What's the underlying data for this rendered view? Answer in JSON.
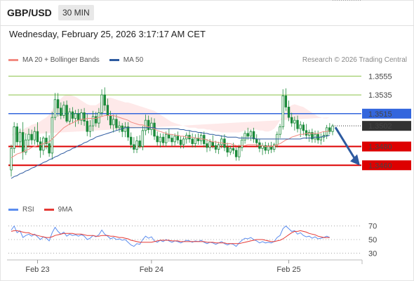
{
  "header": {
    "pair": "GBP/USD",
    "timeframe": "30 MIN"
  },
  "datetime": "Wednesday, February 25, 2026 3:17:17 AM CET",
  "legend": {
    "ma20": "MA 20 + Bollinger Bands",
    "ma50": "MA 50",
    "rsi": "RSI",
    "ma9": "9MA",
    "colors": {
      "ma20": "#f28b82",
      "ma50": "#2d5aa0",
      "rsi": "#5b8def",
      "ma9": "#e53935"
    }
  },
  "credit": "Research © 2026 Trading Central",
  "chart_data": {
    "type": "candlestick",
    "y_range": [
      1.344,
      1.3565
    ],
    "x_labels": [
      "Feb 23",
      "Feb 24",
      "Feb 25"
    ],
    "levels": [
      {
        "value": 1.3555,
        "label": "1.3555",
        "style": "thin",
        "color": "#8bc34a",
        "text_color": "#6a9e2a"
      },
      {
        "value": 1.3535,
        "label": "1.3535",
        "style": "thin",
        "color": "#8bc34a",
        "text_color": "#6a9e2a"
      },
      {
        "value": 1.3515,
        "label": "1.3515",
        "style": "pivot",
        "color": "#3366dd",
        "text_color": "#ffffff"
      },
      {
        "value": 1.348,
        "label": "1.3480",
        "style": "thick",
        "color": "#dd0000",
        "text_color": "#ffffff"
      },
      {
        "value": 1.346,
        "label": "1.3460",
        "style": "thick",
        "color": "#dd0000",
        "text_color": "#ffffff"
      }
    ],
    "last_price": {
      "value": 1.3502,
      "label": "1.3502"
    },
    "forecast_target": 1.3462,
    "candles": [
      [
        1.3455,
        1.3482,
        1.3448,
        1.3478
      ],
      [
        1.3478,
        1.3506,
        1.3473,
        1.3501
      ],
      [
        1.3501,
        1.3505,
        1.3481,
        1.3485
      ],
      [
        1.3485,
        1.3499,
        1.3479,
        1.3495
      ],
      [
        1.3495,
        1.3506,
        1.3466,
        1.3474
      ],
      [
        1.3474,
        1.3494,
        1.3471,
        1.3487
      ],
      [
        1.3487,
        1.3499,
        1.3479,
        1.3493
      ],
      [
        1.3493,
        1.3498,
        1.3482,
        1.3487
      ],
      [
        1.3487,
        1.3501,
        1.3482,
        1.3496
      ],
      [
        1.3496,
        1.3506,
        1.3481,
        1.3485
      ],
      [
        1.3485,
        1.349,
        1.3468,
        1.3476
      ],
      [
        1.3476,
        1.3491,
        1.3471,
        1.3489
      ],
      [
        1.3489,
        1.3496,
        1.3477,
        1.3483
      ],
      [
        1.3483,
        1.3492,
        1.3469,
        1.3473
      ],
      [
        1.3473,
        1.3517,
        1.3466,
        1.3511
      ],
      [
        1.3511,
        1.3537,
        1.3508,
        1.353
      ],
      [
        1.353,
        1.3537,
        1.3512,
        1.3521
      ],
      [
        1.3521,
        1.3527,
        1.3509,
        1.3513
      ],
      [
        1.3513,
        1.3528,
        1.351,
        1.3524
      ],
      [
        1.3524,
        1.3529,
        1.3505,
        1.3507
      ],
      [
        1.3507,
        1.3521,
        1.3503,
        1.3517
      ],
      [
        1.3517,
        1.3522,
        1.3505,
        1.351
      ],
      [
        1.351,
        1.3519,
        1.3501,
        1.3515
      ],
      [
        1.3515,
        1.352,
        1.3504,
        1.3508
      ],
      [
        1.3508,
        1.352,
        1.3503,
        1.3516
      ],
      [
        1.3516,
        1.3521,
        1.3502,
        1.3507
      ],
      [
        1.3507,
        1.3515,
        1.3491,
        1.3496
      ],
      [
        1.3496,
        1.3508,
        1.349,
        1.3502
      ],
      [
        1.3502,
        1.3518,
        1.3496,
        1.3512
      ],
      [
        1.3512,
        1.3517,
        1.3501,
        1.3505
      ],
      [
        1.3505,
        1.3521,
        1.35,
        1.3516
      ],
      [
        1.3516,
        1.3541,
        1.3512,
        1.3535
      ],
      [
        1.3535,
        1.3543,
        1.3518,
        1.3524
      ],
      [
        1.3524,
        1.3531,
        1.3508,
        1.3513
      ],
      [
        1.3513,
        1.3518,
        1.3499,
        1.3503
      ],
      [
        1.3503,
        1.3514,
        1.3495,
        1.3509
      ],
      [
        1.3509,
        1.3514,
        1.3497,
        1.35
      ],
      [
        1.35,
        1.3507,
        1.3495,
        1.3502
      ],
      [
        1.3502,
        1.3505,
        1.349,
        1.3496
      ],
      [
        1.3496,
        1.3506,
        1.349,
        1.3501
      ],
      [
        1.3501,
        1.3506,
        1.3486,
        1.349
      ],
      [
        1.349,
        1.3495,
        1.3478,
        1.3482
      ],
      [
        1.3482,
        1.349,
        1.3473,
        1.3477
      ],
      [
        1.3477,
        1.3491,
        1.3473,
        1.3486
      ],
      [
        1.3486,
        1.3492,
        1.3478,
        1.348
      ],
      [
        1.348,
        1.3502,
        1.3476,
        1.3497
      ],
      [
        1.3497,
        1.3514,
        1.3492,
        1.3508
      ],
      [
        1.3508,
        1.3513,
        1.3494,
        1.3498
      ],
      [
        1.3498,
        1.3511,
        1.3492,
        1.3505
      ],
      [
        1.3505,
        1.351,
        1.3487,
        1.3491
      ],
      [
        1.3491,
        1.3496,
        1.3481,
        1.3485
      ],
      [
        1.3485,
        1.3494,
        1.3479,
        1.349
      ],
      [
        1.349,
        1.3494,
        1.3481,
        1.3484
      ],
      [
        1.3484,
        1.3496,
        1.348,
        1.3493
      ],
      [
        1.3493,
        1.3499,
        1.3485,
        1.3489
      ],
      [
        1.3489,
        1.3493,
        1.348,
        1.3485
      ],
      [
        1.3485,
        1.3494,
        1.3481,
        1.3491
      ],
      [
        1.3491,
        1.3496,
        1.3483,
        1.3487
      ],
      [
        1.3487,
        1.3491,
        1.3478,
        1.3482
      ],
      [
        1.3482,
        1.3491,
        1.3478,
        1.3488
      ],
      [
        1.3488,
        1.3495,
        1.3483,
        1.3492
      ],
      [
        1.3492,
        1.3497,
        1.3484,
        1.3488
      ],
      [
        1.3488,
        1.3494,
        1.3479,
        1.3483
      ],
      [
        1.3483,
        1.3493,
        1.3479,
        1.3489
      ],
      [
        1.3489,
        1.3494,
        1.3482,
        1.3486
      ],
      [
        1.3486,
        1.3495,
        1.3482,
        1.3492
      ],
      [
        1.3492,
        1.3496,
        1.3479,
        1.3483
      ],
      [
        1.3483,
        1.3488,
        1.3474,
        1.3479
      ],
      [
        1.3479,
        1.3488,
        1.3475,
        1.3485
      ],
      [
        1.3485,
        1.3492,
        1.3478,
        1.3481
      ],
      [
        1.3481,
        1.3486,
        1.3473,
        1.3477
      ],
      [
        1.3477,
        1.3485,
        1.3472,
        1.3482
      ],
      [
        1.3482,
        1.3492,
        1.3478,
        1.3488
      ],
      [
        1.3488,
        1.3493,
        1.3475,
        1.3479
      ],
      [
        1.3479,
        1.3484,
        1.3469,
        1.3474
      ],
      [
        1.3474,
        1.3481,
        1.3471,
        1.3478
      ],
      [
        1.3478,
        1.3484,
        1.3472,
        1.3476
      ],
      [
        1.3476,
        1.3479,
        1.3465,
        1.3469
      ],
      [
        1.3469,
        1.3482,
        1.3465,
        1.3479
      ],
      [
        1.3479,
        1.3491,
        1.3475,
        1.3487
      ],
      [
        1.3487,
        1.3497,
        1.3483,
        1.3494
      ],
      [
        1.3494,
        1.35,
        1.3487,
        1.3491
      ],
      [
        1.3491,
        1.3498,
        1.3486,
        1.3496
      ],
      [
        1.3496,
        1.35,
        1.3484,
        1.3488
      ],
      [
        1.3488,
        1.3493,
        1.348,
        1.3484
      ],
      [
        1.3484,
        1.3488,
        1.3474,
        1.3478
      ],
      [
        1.3478,
        1.3484,
        1.3471,
        1.3481
      ],
      [
        1.3481,
        1.3485,
        1.3472,
        1.3476
      ],
      [
        1.3476,
        1.3484,
        1.3472,
        1.348
      ],
      [
        1.348,
        1.3485,
        1.3473,
        1.3477
      ],
      [
        1.3477,
        1.3484,
        1.3474,
        1.3482
      ],
      [
        1.3482,
        1.3496,
        1.3479,
        1.3493
      ],
      [
        1.3493,
        1.3504,
        1.3489,
        1.3501
      ],
      [
        1.3501,
        1.3541,
        1.3498,
        1.3534
      ],
      [
        1.3534,
        1.3542,
        1.3518,
        1.3522
      ],
      [
        1.3522,
        1.3529,
        1.3507,
        1.3511
      ],
      [
        1.3511,
        1.3516,
        1.3501,
        1.3505
      ],
      [
        1.3505,
        1.3512,
        1.3497,
        1.3508
      ],
      [
        1.3508,
        1.3513,
        1.3495,
        1.3499
      ],
      [
        1.3499,
        1.3507,
        1.349,
        1.3503
      ],
      [
        1.3503,
        1.3506,
        1.3492,
        1.3497
      ],
      [
        1.3497,
        1.3504,
        1.3488,
        1.3492
      ],
      [
        1.3492,
        1.3498,
        1.3485,
        1.3495
      ],
      [
        1.3495,
        1.3499,
        1.3484,
        1.3488
      ],
      [
        1.3488,
        1.3497,
        1.3484,
        1.3493
      ],
      [
        1.3493,
        1.3497,
        1.3483,
        1.3487
      ],
      [
        1.3487,
        1.3494,
        1.3482,
        1.349
      ],
      [
        1.349,
        1.3496,
        1.3485,
        1.3492
      ],
      [
        1.3492,
        1.3503,
        1.3488,
        1.35
      ],
      [
        1.35,
        1.3505,
        1.3493,
        1.3496
      ],
      [
        1.3496,
        1.3504,
        1.3492,
        1.3502
      ]
    ],
    "ma20": [
      1.3468,
      1.347,
      1.3472,
      1.3473,
      1.3474,
      1.3476,
      1.3477,
      1.3479,
      1.348,
      1.3481,
      1.3482,
      1.3483,
      1.3484,
      1.3485,
      1.3488,
      1.3491,
      1.3494,
      1.3497,
      1.35,
      1.3502,
      1.3504,
      1.3505,
      1.3507,
      1.3508,
      1.3509,
      1.3509,
      1.351,
      1.351,
      1.351,
      1.351,
      1.3511,
      1.3512,
      1.3513,
      1.3513,
      1.3513,
      1.3513,
      1.3512,
      1.3511,
      1.351,
      1.3509,
      1.3508,
      1.3506,
      1.3505,
      1.3504,
      1.3503,
      1.3503,
      1.3502,
      1.3501,
      1.35,
      1.3499,
      1.3497,
      1.3496,
      1.3495,
      1.3494,
      1.3493,
      1.3493,
      1.3492,
      1.3492,
      1.3491,
      1.3491,
      1.349,
      1.349,
      1.349,
      1.3489,
      1.3489,
      1.3488,
      1.3488,
      1.3487,
      1.3486,
      1.3485,
      1.3485,
      1.3484,
      1.3484,
      1.3483,
      1.3483,
      1.3483,
      1.3482,
      1.3481,
      1.3481,
      1.3481,
      1.3481,
      1.3482,
      1.3482,
      1.3482,
      1.3482,
      1.3481,
      1.3481,
      1.348,
      1.348,
      1.348,
      1.3481,
      1.3482,
      1.3483,
      1.3485,
      1.3487,
      1.3488,
      1.349,
      1.3491,
      1.3492,
      1.3493,
      1.3493,
      1.3494,
      1.3494,
      1.3494,
      1.3494,
      1.3494,
      1.3495,
      1.3496,
      1.3496,
      1.3497
    ],
    "bb_upper": [
      1.3492,
      1.3494,
      1.3496,
      1.3497,
      1.3498,
      1.35,
      1.3501,
      1.3503,
      1.3504,
      1.3505,
      1.3507,
      1.3509,
      1.3511,
      1.3514,
      1.3519,
      1.3524,
      1.3528,
      1.3531,
      1.3534,
      1.3535,
      1.3535,
      1.3534,
      1.3533,
      1.3531,
      1.3529,
      1.3527,
      1.3525,
      1.3524,
      1.3524,
      1.3524,
      1.3526,
      1.3529,
      1.3531,
      1.3532,
      1.3532,
      1.3531,
      1.353,
      1.3529,
      1.3528,
      1.3527,
      1.3527,
      1.3526,
      1.3525,
      1.3524,
      1.3523,
      1.3522,
      1.3521,
      1.352,
      1.3519,
      1.3518,
      1.3516,
      1.3514,
      1.3512,
      1.351,
      1.3508,
      1.3506,
      1.3505,
      1.3504,
      1.3503,
      1.3502,
      1.3501,
      1.35,
      1.35,
      1.35,
      1.3499,
      1.3499,
      1.3499,
      1.3498,
      1.3498,
      1.3497,
      1.3496,
      1.3496,
      1.3495,
      1.3495,
      1.3495,
      1.3495,
      1.3495,
      1.3495,
      1.3495,
      1.3496,
      1.3497,
      1.3498,
      1.3498,
      1.3498,
      1.3498,
      1.3497,
      1.3497,
      1.3496,
      1.3496,
      1.3497,
      1.3499,
      1.3503,
      1.3508,
      1.3514,
      1.3519,
      1.3522,
      1.3524,
      1.3525,
      1.3524,
      1.3523,
      1.3522,
      1.352,
      1.3518,
      1.3516,
      1.3514,
      1.3512,
      1.3511,
      1.351,
      1.351,
      1.3511
    ],
    "bb_lower": [
      1.3444,
      1.3446,
      1.3448,
      1.3449,
      1.345,
      1.3452,
      1.3453,
      1.3455,
      1.3456,
      1.3457,
      1.3457,
      1.3457,
      1.3457,
      1.3456,
      1.3457,
      1.3458,
      1.346,
      1.3463,
      1.3466,
      1.3469,
      1.3473,
      1.3476,
      1.3481,
      1.3485,
      1.3489,
      1.3491,
      1.3495,
      1.3496,
      1.3496,
      1.3496,
      1.3496,
      1.3495,
      1.3495,
      1.3494,
      1.3494,
      1.3495,
      1.3494,
      1.3493,
      1.3492,
      1.3491,
      1.3489,
      1.3486,
      1.3485,
      1.3484,
      1.3483,
      1.3484,
      1.3483,
      1.3482,
      1.3481,
      1.348,
      1.3478,
      1.3478,
      1.3478,
      1.3478,
      1.3478,
      1.348,
      1.3479,
      1.348,
      1.3479,
      1.348,
      1.3479,
      1.348,
      1.348,
      1.3478,
      1.3479,
      1.3477,
      1.3477,
      1.3476,
      1.3474,
      1.3473,
      1.3474,
      1.3472,
      1.3473,
      1.3471,
      1.3471,
      1.3471,
      1.3469,
      1.3467,
      1.3467,
      1.3466,
      1.3465,
      1.3466,
      1.3466,
      1.3466,
      1.3466,
      1.3465,
      1.3465,
      1.3464,
      1.3464,
      1.3463,
      1.3463,
      1.3461,
      1.3458,
      1.3456,
      1.3455,
      1.3454,
      1.3456,
      1.3457,
      1.346,
      1.3463,
      1.3464,
      1.3468,
      1.347,
      1.3472,
      1.3474,
      1.3476,
      1.3479,
      1.3482,
      1.3482,
      1.3483
    ],
    "ma50": [
      1.3446,
      1.3448,
      1.3449,
      1.3451,
      1.3452,
      1.3454,
      1.3455,
      1.3457,
      1.3458,
      1.346,
      1.3461,
      1.3463,
      1.3464,
      1.3466,
      1.3467,
      1.3469,
      1.347,
      1.3472,
      1.3473,
      1.3475,
      1.3476,
      1.3478,
      1.3479,
      1.3481,
      1.3482,
      1.3484,
      1.3485,
      1.3487,
      1.3488,
      1.349,
      1.3491,
      1.3492,
      1.3493,
      1.3494,
      1.3495,
      1.3496,
      1.3497,
      1.3498,
      1.3499,
      1.35,
      1.35,
      1.35,
      1.35,
      1.35,
      1.35,
      1.35,
      1.35,
      1.35,
      1.35,
      1.35,
      1.3499,
      1.3499,
      1.3499,
      1.3499,
      1.3499,
      1.3499,
      1.3499,
      1.3499,
      1.3498,
      1.3498,
      1.3497,
      1.3497,
      1.3496,
      1.3496,
      1.3495,
      1.3495,
      1.3494,
      1.3494,
      1.3493,
      1.3493,
      1.3492,
      1.3492,
      1.3491,
      1.3491,
      1.349,
      1.349,
      1.349,
      1.349,
      1.3489,
      1.3489,
      1.3489,
      1.3489,
      1.3489,
      1.3489,
      1.3488,
      1.3488,
      1.3488,
      1.3488,
      1.3488,
      1.3488,
      1.3488,
      1.3488,
      1.3488,
      1.3488,
      1.3488,
      1.3488,
      1.3488,
      1.3488,
      1.3488,
      1.3488,
      1.3489,
      1.3489,
      1.3489,
      1.3489,
      1.349,
      1.349,
      1.349,
      1.3491,
      1.3491,
      1.3492
    ],
    "rsi": {
      "levels": [
        70,
        50,
        30
      ],
      "y_range": [
        20,
        80
      ],
      "rsi": [
        64,
        70,
        60,
        63,
        53,
        56,
        58,
        55,
        58,
        54,
        50,
        54,
        52,
        48,
        60,
        68,
        62,
        58,
        61,
        55,
        58,
        56,
        57,
        55,
        57,
        55,
        50,
        52,
        56,
        54,
        57,
        64,
        58,
        55,
        51,
        53,
        50,
        51,
        49,
        50,
        46,
        42,
        40,
        44,
        43,
        50,
        55,
        52,
        54,
        48,
        46,
        49,
        47,
        50,
        48,
        46,
        48,
        47,
        45,
        47,
        49,
        48,
        46,
        48,
        47,
        49,
        46,
        44,
        46,
        45,
        43,
        45,
        47,
        44,
        42,
        44,
        43,
        40,
        45,
        49,
        52,
        51,
        53,
        50,
        48,
        45,
        47,
        45,
        46,
        45,
        47,
        53,
        56,
        66,
        70,
        66,
        62,
        63,
        58,
        60,
        56,
        54,
        55,
        52,
        54,
        51,
        52,
        53,
        55,
        53
      ],
      "ma9": [
        62,
        63,
        63,
        62,
        61,
        60,
        60,
        58,
        57,
        56,
        55,
        54,
        53,
        53,
        54,
        56,
        57,
        58,
        59,
        59,
        59,
        59,
        58,
        58,
        58,
        57,
        56,
        56,
        56,
        55,
        55,
        56,
        56,
        56,
        55,
        55,
        54,
        53,
        53,
        52,
        51,
        49,
        48,
        47,
        46,
        46,
        46,
        46,
        46,
        47,
        48,
        49,
        49,
        49,
        49,
        48,
        48,
        48,
        47,
        47,
        47,
        47,
        47,
        47,
        47,
        47,
        47,
        46,
        46,
        46,
        45,
        45,
        45,
        45,
        44,
        44,
        44,
        44,
        44,
        45,
        46,
        47,
        48,
        49,
        50,
        50,
        50,
        49,
        48,
        47,
        47,
        48,
        49,
        51,
        54,
        57,
        60,
        62,
        62,
        63,
        62,
        61,
        59,
        58,
        57,
        55,
        54,
        53,
        53,
        53
      ]
    }
  }
}
